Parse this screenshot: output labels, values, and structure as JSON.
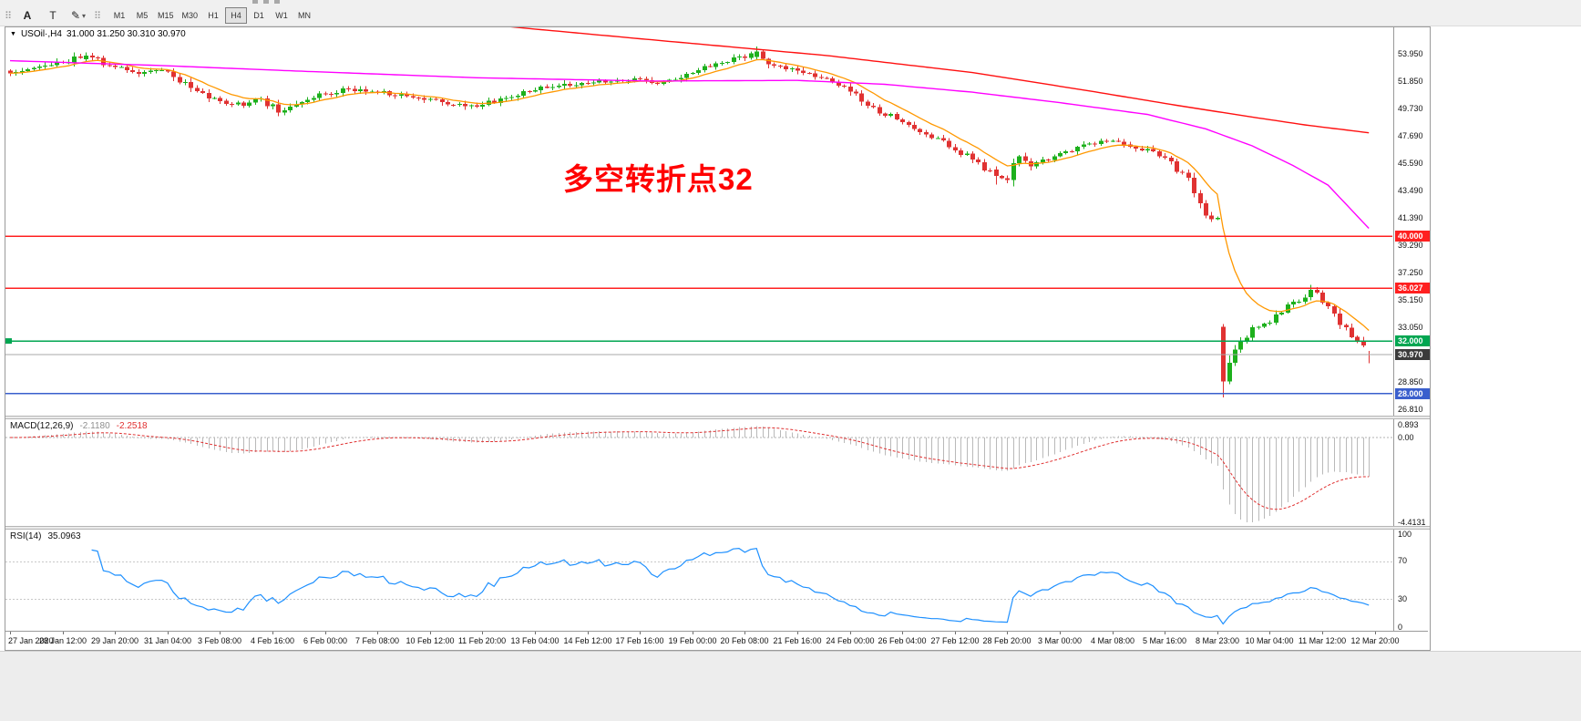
{
  "window": {
    "background": "#ffffff",
    "chrome_background": "#f0f0f0"
  },
  "toolbar": {
    "grip_icon": "⠿",
    "annotation_button": "A",
    "text_button": "T",
    "draw_button": "✎",
    "dropdown_caret": "▾",
    "timeframes": [
      "M1",
      "M5",
      "M15",
      "M30",
      "H1",
      "H4",
      "D1",
      "W1",
      "MN"
    ],
    "active_timeframe": "H4"
  },
  "main_chart": {
    "collapse_marker": "▼",
    "symbol_title": "USOil·,H4",
    "ohlc_readout": "31.000 31.250 30.310 30.970",
    "annotation": "多空转折点32",
    "annotation_color": "#ff0000",
    "y_axis_labels": [
      "53.950",
      "51.850",
      "49.730",
      "47.690",
      "45.590",
      "43.490",
      "41.390",
      "39.290",
      "37.250",
      "35.150",
      "33.050",
      "28.850",
      "26.810"
    ],
    "levels": [
      {
        "price": 40.0,
        "label": "40.000",
        "color": "#ff2020",
        "kind": "resistance"
      },
      {
        "price": 36.027,
        "label": "36.027",
        "color": "#ff2020",
        "kind": "resistance"
      },
      {
        "price": 32.0,
        "label": "32.000",
        "color": "#00a651",
        "kind": "support"
      },
      {
        "price": 28.0,
        "label": "28.000",
        "color": "#3a5fcd",
        "kind": "support"
      }
    ],
    "current_price": {
      "value": 30.97,
      "label": "30.970",
      "tag_color": "#3b3b3b",
      "line_color": "#a8a8a8"
    }
  },
  "macd_panel": {
    "label": "MACD(12,26,9)",
    "main_value": "-2.1180",
    "signal_value": "-2.2518",
    "y_axis_labels": [
      "0.893",
      "0.00",
      "-4.4131"
    ],
    "hist_color": "#b9b9b9",
    "signal_color": "#e03030"
  },
  "rsi_panel": {
    "label": "RSI(14)",
    "value": "35.0963",
    "y_axis_labels": [
      "100",
      "70",
      "30",
      "0"
    ],
    "level_lines": [
      70,
      30
    ],
    "line_color": "#1e90ff"
  },
  "time_axis": {
    "labels": [
      "27 Jan 2020",
      "28 Jan 12:00",
      "29 Jan 20:00",
      "31 Jan 04:00",
      "3 Feb 08:00",
      "4 Feb 16:00",
      "6 Feb 00:00",
      "7 Feb 08:00",
      "10 Feb 12:00",
      "11 Feb 20:00",
      "13 Feb 04:00",
      "14 Feb 12:00",
      "17 Feb 16:00",
      "19 Feb 00:00",
      "20 Feb 08:00",
      "21 Feb 16:00",
      "24 Feb 00:00",
      "26 Feb 04:00",
      "27 Feb 12:00",
      "28 Feb 20:00",
      "3 Mar 00:00",
      "4 Mar 08:00",
      "5 Mar 16:00",
      "8 Mar 23:00",
      "10 Mar 04:00",
      "11 Mar 12:00",
      "12 Mar 20:00"
    ]
  },
  "chart_data": {
    "type": "candlestick",
    "symbol": "USOil",
    "timeframe": "H4",
    "last_bar_ohlc": {
      "open": 31.0,
      "high": 31.25,
      "low": 30.31,
      "close": 30.97
    },
    "ylim": [
      26.3,
      55.95
    ],
    "y_tick_labels": [
      53.95,
      51.85,
      49.73,
      47.69,
      45.59,
      43.49,
      41.39,
      39.29,
      37.25,
      35.15,
      33.05,
      28.85,
      26.81
    ],
    "bars_total": 234,
    "seed": 20200312,
    "close_waypoints": [
      [
        0,
        52.5
      ],
      [
        5,
        52.9
      ],
      [
        9,
        53.3
      ],
      [
        13,
        53.8
      ],
      [
        18,
        52.9
      ],
      [
        22,
        52.35
      ],
      [
        26,
        52.7
      ],
      [
        31,
        51.4
      ],
      [
        36,
        50.3
      ],
      [
        40,
        50.0
      ],
      [
        43,
        50.45
      ],
      [
        46,
        49.5
      ],
      [
        50,
        50.2
      ],
      [
        54,
        50.9
      ],
      [
        58,
        51.25
      ],
      [
        63,
        51.0
      ],
      [
        68,
        50.7
      ],
      [
        72,
        50.45
      ],
      [
        76,
        50.05
      ],
      [
        81,
        50.0
      ],
      [
        85,
        50.6
      ],
      [
        90,
        51.2
      ],
      [
        94,
        51.5
      ],
      [
        99,
        51.7
      ],
      [
        104,
        51.95
      ],
      [
        108,
        52.0
      ],
      [
        111,
        51.55
      ],
      [
        117,
        52.4
      ],
      [
        121,
        53.2
      ],
      [
        126,
        53.7
      ],
      [
        128,
        54.1
      ],
      [
        131,
        53.0
      ],
      [
        135,
        52.6
      ],
      [
        139,
        52.15
      ],
      [
        142,
        51.5
      ],
      [
        144,
        51.1
      ],
      [
        148,
        49.8
      ],
      [
        153,
        48.7
      ],
      [
        157,
        47.8
      ],
      [
        162,
        46.6
      ],
      [
        166,
        45.6
      ],
      [
        169,
        44.6
      ],
      [
        171,
        44.4
      ],
      [
        173,
        46.2
      ],
      [
        175,
        45.4
      ],
      [
        178,
        45.9
      ],
      [
        180,
        46.3
      ],
      [
        184,
        47.0
      ],
      [
        189,
        47.3
      ],
      [
        192,
        46.8
      ],
      [
        195,
        46.6
      ],
      [
        198,
        46.0
      ],
      [
        201,
        44.8
      ],
      [
        203,
        43.4
      ],
      [
        205,
        41.6
      ],
      [
        207,
        41.3
      ],
      [
        208,
        28.9
      ],
      [
        209,
        30.2
      ],
      [
        211,
        31.9
      ],
      [
        213,
        33.0
      ],
      [
        216,
        33.5
      ],
      [
        219,
        34.8
      ],
      [
        222,
        35.3
      ],
      [
        224,
        35.7
      ],
      [
        225,
        35.0
      ],
      [
        228,
        33.2
      ],
      [
        231,
        32.0
      ],
      [
        233,
        30.97
      ]
    ],
    "key_bars": [
      {
        "i": 13,
        "open": 53.5,
        "high": 54.05,
        "low": 53.3,
        "close": 53.8
      },
      {
        "i": 128,
        "open": 53.7,
        "high": 54.5,
        "low": 53.45,
        "close": 54.1
      },
      {
        "i": 169,
        "open": 45.1,
        "high": 45.35,
        "low": 43.95,
        "close": 44.6
      },
      {
        "i": 208,
        "open": 33.1,
        "high": 33.3,
        "low": 27.7,
        "close": 28.9
      },
      {
        "i": 223,
        "open": 35.35,
        "high": 36.3,
        "low": 35.1,
        "close": 35.9
      },
      {
        "i": 233,
        "open": 31.0,
        "high": 31.25,
        "low": 30.31,
        "close": 30.97
      }
    ],
    "overlays": {
      "ma_fast": {
        "type": "ema",
        "period": 10,
        "color": "#ff9800"
      },
      "ma_mid": {
        "type": "path",
        "color": "#ff00ff",
        "waypoints": [
          [
            0,
            53.4
          ],
          [
            25,
            53.05
          ],
          [
            50,
            52.6
          ],
          [
            80,
            52.1
          ],
          [
            110,
            51.85
          ],
          [
            135,
            51.9
          ],
          [
            150,
            51.6
          ],
          [
            165,
            51.0
          ],
          [
            180,
            50.2
          ],
          [
            195,
            49.3
          ],
          [
            205,
            48.2
          ],
          [
            213,
            46.9
          ],
          [
            220,
            45.4
          ],
          [
            226,
            43.9
          ],
          [
            233,
            40.6
          ]
        ]
      },
      "ma_slow": {
        "type": "path",
        "color": "#ff1010",
        "waypoints": [
          [
            0,
            58.6
          ],
          [
            40,
            57.6
          ],
          [
            70,
            56.7
          ],
          [
            88,
            55.9
          ],
          [
            110,
            55.0
          ],
          [
            140,
            53.8
          ],
          [
            165,
            52.5
          ],
          [
            185,
            51.1
          ],
          [
            200,
            50.0
          ],
          [
            213,
            49.1
          ],
          [
            222,
            48.5
          ],
          [
            233,
            47.9
          ]
        ]
      }
    },
    "indicators": {
      "macd": {
        "fast": 12,
        "slow": 26,
        "signal": 9,
        "current_main": -2.118,
        "current_signal": -2.2518,
        "axis_labels": [
          0.893,
          0.0,
          -4.4131
        ]
      },
      "rsi": {
        "period": 14,
        "current": 35.0963,
        "levels": [
          70,
          30
        ]
      }
    },
    "x_tick_labels": [
      "27 Jan 2020",
      "28 Jan 12:00",
      "29 Jan 20:00",
      "31 Jan 04:00",
      "3 Feb 08:00",
      "4 Feb 16:00",
      "6 Feb 00:00",
      "7 Feb 08:00",
      "10 Feb 12:00",
      "11 Feb 20:00",
      "13 Feb 04:00",
      "14 Feb 12:00",
      "17 Feb 16:00",
      "19 Feb 00:00",
      "20 Feb 08:00",
      "21 Feb 16:00",
      "24 Feb 00:00",
      "26 Feb 04:00",
      "27 Feb 12:00",
      "28 Feb 20:00",
      "3 Mar 00:00",
      "4 Mar 08:00",
      "5 Mar 16:00",
      "8 Mar 23:00",
      "10 Mar 04:00",
      "11 Mar 12:00",
      "12 Mar 20:00"
    ],
    "candle_up_color": "#1db01c",
    "candle_down_color": "#e03232"
  }
}
